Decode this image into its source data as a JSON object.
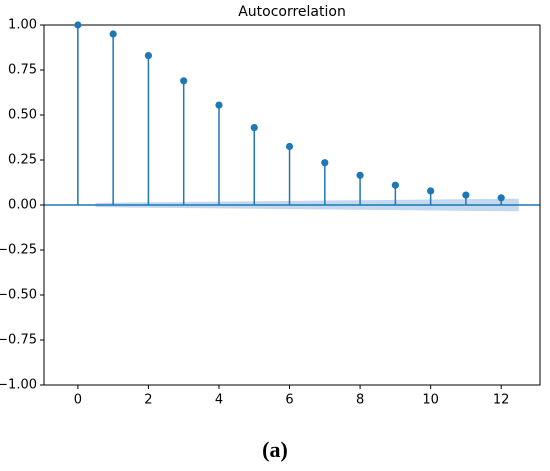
{
  "chart_data": {
    "type": "stem",
    "title": "Autocorrelation",
    "x": [
      0,
      1,
      2,
      3,
      4,
      5,
      6,
      7,
      8,
      9,
      10,
      11,
      12
    ],
    "values": [
      1.0,
      0.95,
      0.83,
      0.69,
      0.555,
      0.43,
      0.325,
      0.235,
      0.165,
      0.11,
      0.078,
      0.055,
      0.04
    ],
    "color": "#1f77b4",
    "confint": {
      "x": [
        0.5,
        12.5
      ],
      "upper": [
        0.012,
        0.035
      ],
      "lower": [
        -0.012,
        -0.035
      ],
      "color": "#a9c9e8"
    },
    "xlim": [
      -0.96,
      13.1
    ],
    "ylim": [
      -1.0,
      1.0
    ],
    "xticks": [
      0,
      2,
      4,
      6,
      8,
      10,
      12
    ],
    "yticks": [
      {
        "value": -1.0,
        "label": "−1.00"
      },
      {
        "value": -0.75,
        "label": "−0.75"
      },
      {
        "value": -0.5,
        "label": "−0.50"
      },
      {
        "value": -0.25,
        "label": "−0.25"
      },
      {
        "value": 0.0,
        "label": "0.00"
      },
      {
        "value": 0.25,
        "label": "0.25"
      },
      {
        "value": 0.5,
        "label": "0.50"
      },
      {
        "value": 0.75,
        "label": "0.75"
      },
      {
        "value": 1.0,
        "label": "1.00"
      }
    ],
    "caption": "(a)"
  }
}
